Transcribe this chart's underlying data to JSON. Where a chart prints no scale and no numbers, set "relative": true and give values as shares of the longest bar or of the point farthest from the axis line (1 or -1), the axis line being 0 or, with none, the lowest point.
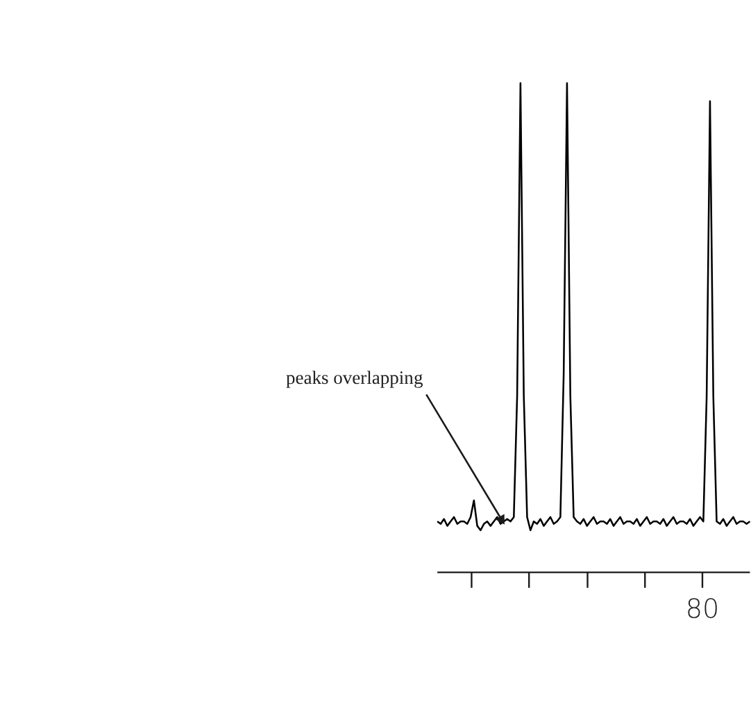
{
  "chart_data": {
    "type": "line",
    "relative": true,
    "color": "#000000",
    "categories": [
      null,
      null,
      null,
      null,
      null,
      null,
      null,
      null,
      null,
      null,
      null,
      null,
      null,
      null,
      null,
      null,
      null,
      null,
      null,
      null,
      null,
      null,
      null,
      null,
      null,
      null,
      null,
      null,
      null,
      null,
      null,
      null,
      null,
      null,
      null,
      null,
      null,
      null,
      null,
      null,
      null,
      null,
      null,
      null,
      null,
      null,
      null,
      null,
      null,
      null,
      null,
      null,
      null,
      null,
      null,
      null,
      null,
      null,
      null,
      null,
      null,
      null,
      null,
      null,
      null,
      null,
      null,
      null,
      null,
      null,
      null,
      null,
      null,
      null,
      null,
      null,
      null,
      null,
      null,
      null,
      null,
      null,
      null,
      null,
      null,
      null,
      null,
      null,
      null,
      null,
      null,
      null,
      null,
      null,
      null
    ],
    "values": [
      0.104,
      0.099,
      0.109,
      0.095,
      0.104,
      0.113,
      0.099,
      0.104,
      0.104,
      0.099,
      0.113,
      0.147,
      0.095,
      0.086,
      0.099,
      0.104,
      0.095,
      0.104,
      0.113,
      0.099,
      0.104,
      0.109,
      0.104,
      0.113,
      0.36,
      1.0,
      0.36,
      0.113,
      0.086,
      0.104,
      0.099,
      0.109,
      0.095,
      0.104,
      0.113,
      0.099,
      0.104,
      0.113,
      0.406,
      1.0,
      0.36,
      0.113,
      0.104,
      0.099,
      0.109,
      0.095,
      0.104,
      0.113,
      0.099,
      0.104,
      0.104,
      0.099,
      0.109,
      0.095,
      0.104,
      0.113,
      0.099,
      0.104,
      0.104,
      0.099,
      0.109,
      0.095,
      0.104,
      0.113,
      0.099,
      0.104,
      0.104,
      0.099,
      0.109,
      0.095,
      0.104,
      0.113,
      0.099,
      0.104,
      0.104,
      0.099,
      0.109,
      0.095,
      0.104,
      0.113,
      0.104,
      0.36,
      0.963,
      0.36,
      0.104,
      0.099,
      0.109,
      0.095,
      0.104,
      0.113,
      0.099,
      0.104,
      0.104,
      0.099,
      0.104
    ],
    "annotations": [
      "peaks overlapping",
      "80"
    ],
    "marker": "none",
    "line_style": "solid"
  }
}
